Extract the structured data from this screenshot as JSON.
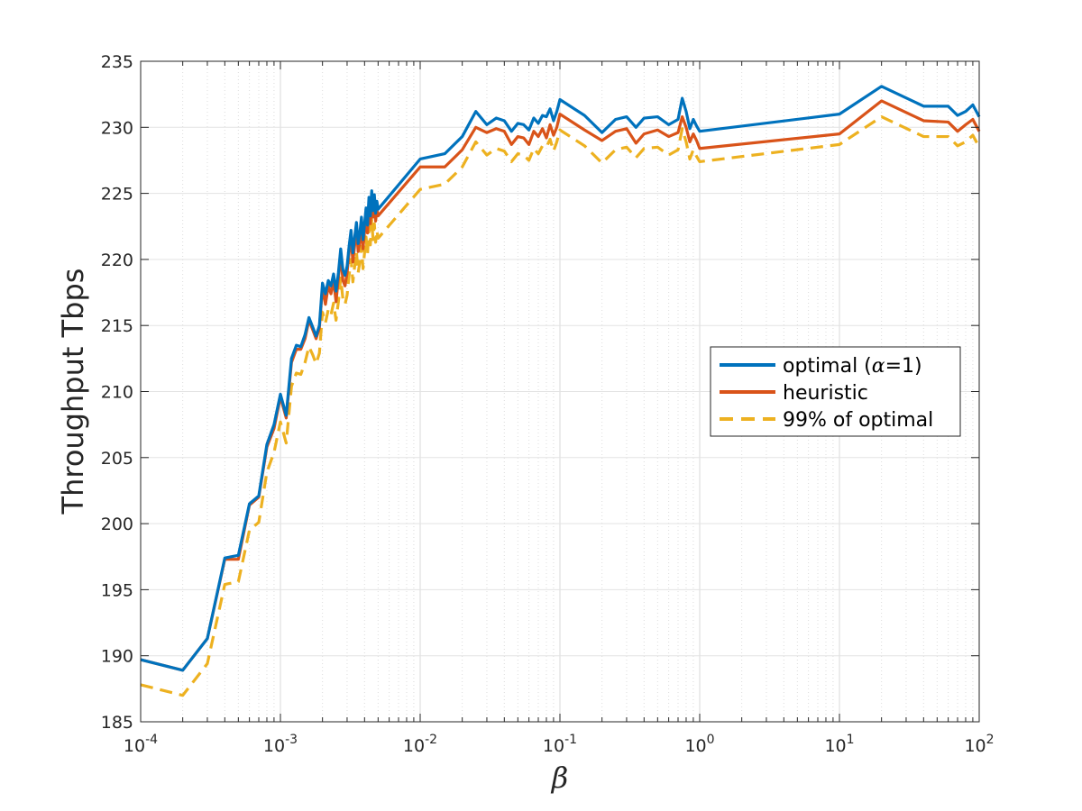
{
  "chart_data": {
    "type": "line",
    "xscale": "log",
    "xlim": [
      0.0001,
      100
    ],
    "ylim": [
      185,
      235
    ],
    "yticks": [
      185,
      190,
      195,
      200,
      205,
      210,
      215,
      220,
      225,
      230,
      235
    ],
    "xticks": [
      {
        "value": 0.0001,
        "base": "10",
        "exp": "-4"
      },
      {
        "value": 0.001,
        "base": "10",
        "exp": "-3"
      },
      {
        "value": 0.01,
        "base": "10",
        "exp": "-2"
      },
      {
        "value": 0.1,
        "base": "10",
        "exp": "-1"
      },
      {
        "value": 1,
        "base": "10",
        "exp": "0"
      },
      {
        "value": 10,
        "base": "10",
        "exp": "1"
      },
      {
        "value": 100,
        "base": "10",
        "exp": "2"
      }
    ],
    "xlabel": "β",
    "ylabel": "Throughput Tbps",
    "grid": true,
    "legend": {
      "position": "center-right",
      "entries": [
        {
          "prefix": "optimal (",
          "symbol": "α",
          "suffix": "=1)"
        },
        {
          "prefix": "heuristic",
          "symbol": "",
          "suffix": ""
        },
        {
          "prefix": "99% of optimal",
          "symbol": "",
          "suffix": ""
        }
      ]
    },
    "series": [
      {
        "key": "optimal",
        "color": "#0072BD",
        "dash": "solid",
        "points": [
          [
            0.0001,
            189.7
          ],
          [
            0.0002,
            188.9
          ],
          [
            0.0003,
            191.3
          ],
          [
            0.0004,
            197.4
          ],
          [
            0.0005,
            197.6
          ],
          [
            0.0006,
            201.5
          ],
          [
            0.0007,
            202.1
          ],
          [
            0.0008,
            206.0
          ],
          [
            0.0009,
            207.5
          ],
          [
            0.001,
            209.8
          ],
          [
            0.0011,
            208.2
          ],
          [
            0.0012,
            212.5
          ],
          [
            0.0013,
            213.5
          ],
          [
            0.0014,
            213.4
          ],
          [
            0.0015,
            214.3
          ],
          [
            0.0016,
            215.6
          ],
          [
            0.0017,
            214.9
          ],
          [
            0.0018,
            214.2
          ],
          [
            0.0019,
            215.0
          ],
          [
            0.002,
            218.2
          ],
          [
            0.0021,
            217.4
          ],
          [
            0.0022,
            218.4
          ],
          [
            0.0023,
            218.0
          ],
          [
            0.0024,
            218.9
          ],
          [
            0.0025,
            217.6
          ],
          [
            0.0026,
            219.0
          ],
          [
            0.0027,
            220.8
          ],
          [
            0.0028,
            219.2
          ],
          [
            0.0029,
            218.8
          ],
          [
            0.003,
            219.5
          ],
          [
            0.0031,
            221.0
          ],
          [
            0.0032,
            222.2
          ],
          [
            0.0033,
            220.5
          ],
          [
            0.0034,
            221.7
          ],
          [
            0.0035,
            222.8
          ],
          [
            0.0036,
            221.2
          ],
          [
            0.0037,
            222.0
          ],
          [
            0.0038,
            223.2
          ],
          [
            0.0039,
            221.5
          ],
          [
            0.004,
            222.7
          ],
          [
            0.0041,
            223.9
          ],
          [
            0.0042,
            222.6
          ],
          [
            0.0043,
            224.7
          ],
          [
            0.0044,
            223.3
          ],
          [
            0.0045,
            225.2
          ],
          [
            0.0046,
            223.7
          ],
          [
            0.0047,
            224.9
          ],
          [
            0.0048,
            223.5
          ],
          [
            0.0049,
            224.4
          ],
          [
            0.005,
            223.8
          ],
          [
            0.01,
            227.6
          ],
          [
            0.015,
            228.0
          ],
          [
            0.02,
            229.3
          ],
          [
            0.025,
            231.2
          ],
          [
            0.03,
            230.2
          ],
          [
            0.035,
            230.7
          ],
          [
            0.04,
            230.5
          ],
          [
            0.045,
            229.7
          ],
          [
            0.05,
            230.3
          ],
          [
            0.055,
            230.2
          ],
          [
            0.06,
            229.8
          ],
          [
            0.065,
            230.7
          ],
          [
            0.07,
            230.3
          ],
          [
            0.075,
            230.9
          ],
          [
            0.08,
            230.8
          ],
          [
            0.085,
            231.4
          ],
          [
            0.09,
            230.5
          ],
          [
            0.095,
            231.2
          ],
          [
            0.1,
            232.1
          ],
          [
            0.15,
            230.9
          ],
          [
            0.2,
            229.6
          ],
          [
            0.25,
            230.6
          ],
          [
            0.3,
            230.8
          ],
          [
            0.35,
            230.0
          ],
          [
            0.4,
            230.7
          ],
          [
            0.5,
            230.8
          ],
          [
            0.6,
            230.2
          ],
          [
            0.7,
            230.6
          ],
          [
            0.75,
            232.2
          ],
          [
            0.8,
            231.2
          ],
          [
            0.85,
            229.9
          ],
          [
            0.9,
            230.6
          ],
          [
            0.95,
            230.1
          ],
          [
            1,
            229.7
          ],
          [
            10,
            231.0
          ],
          [
            20,
            233.1
          ],
          [
            40,
            231.6
          ],
          [
            60,
            231.6
          ],
          [
            70,
            230.9
          ],
          [
            80,
            231.2
          ],
          [
            90,
            231.7
          ],
          [
            100,
            230.8
          ]
        ]
      },
      {
        "key": "heuristic",
        "color": "#D95319",
        "dash": "solid",
        "points": [
          [
            0.0001,
            189.7
          ],
          [
            0.0002,
            188.9
          ],
          [
            0.0003,
            191.3
          ],
          [
            0.0004,
            197.3
          ],
          [
            0.0005,
            197.3
          ],
          [
            0.0006,
            201.4
          ],
          [
            0.0007,
            202.0
          ],
          [
            0.0008,
            205.8
          ],
          [
            0.0009,
            207.2
          ],
          [
            0.001,
            209.6
          ],
          [
            0.0011,
            208.0
          ],
          [
            0.0012,
            212.2
          ],
          [
            0.0013,
            213.2
          ],
          [
            0.0014,
            213.2
          ],
          [
            0.0015,
            214.0
          ],
          [
            0.0016,
            215.4
          ],
          [
            0.0017,
            214.7
          ],
          [
            0.0018,
            214.0
          ],
          [
            0.0019,
            214.8
          ],
          [
            0.002,
            217.9
          ],
          [
            0.0021,
            216.6
          ],
          [
            0.0022,
            218.0
          ],
          [
            0.0023,
            217.4
          ],
          [
            0.0024,
            218.4
          ],
          [
            0.0025,
            216.8
          ],
          [
            0.0026,
            218.6
          ],
          [
            0.0027,
            220.3
          ],
          [
            0.0028,
            218.4
          ],
          [
            0.0029,
            218.0
          ],
          [
            0.003,
            219.0
          ],
          [
            0.0031,
            220.5
          ],
          [
            0.0032,
            221.7
          ],
          [
            0.0033,
            219.8
          ],
          [
            0.0034,
            221.1
          ],
          [
            0.0035,
            222.3
          ],
          [
            0.0036,
            220.6
          ],
          [
            0.0037,
            221.3
          ],
          [
            0.0038,
            222.7
          ],
          [
            0.0039,
            220.8
          ],
          [
            0.004,
            222.1
          ],
          [
            0.0041,
            223.3
          ],
          [
            0.0042,
            222.0
          ],
          [
            0.0043,
            224.2
          ],
          [
            0.0044,
            222.7
          ],
          [
            0.0045,
            224.6
          ],
          [
            0.0046,
            223.2
          ],
          [
            0.0047,
            224.3
          ],
          [
            0.0048,
            222.9
          ],
          [
            0.0049,
            223.8
          ],
          [
            0.005,
            223.3
          ],
          [
            0.01,
            227.0
          ],
          [
            0.015,
            227.0
          ],
          [
            0.02,
            228.3
          ],
          [
            0.025,
            230.0
          ],
          [
            0.03,
            229.6
          ],
          [
            0.035,
            229.9
          ],
          [
            0.04,
            229.7
          ],
          [
            0.045,
            228.7
          ],
          [
            0.05,
            229.3
          ],
          [
            0.055,
            229.2
          ],
          [
            0.06,
            228.7
          ],
          [
            0.065,
            229.7
          ],
          [
            0.07,
            229.3
          ],
          [
            0.075,
            229.9
          ],
          [
            0.08,
            229.2
          ],
          [
            0.085,
            230.2
          ],
          [
            0.09,
            229.4
          ],
          [
            0.095,
            230.0
          ],
          [
            0.1,
            231.0
          ],
          [
            0.15,
            229.8
          ],
          [
            0.2,
            229.0
          ],
          [
            0.25,
            229.7
          ],
          [
            0.3,
            229.9
          ],
          [
            0.35,
            228.8
          ],
          [
            0.4,
            229.5
          ],
          [
            0.5,
            229.8
          ],
          [
            0.6,
            229.3
          ],
          [
            0.7,
            229.6
          ],
          [
            0.75,
            230.8
          ],
          [
            0.8,
            230.0
          ],
          [
            0.85,
            228.9
          ],
          [
            0.9,
            229.5
          ],
          [
            0.95,
            229.0
          ],
          [
            1,
            228.4
          ],
          [
            10,
            229.5
          ],
          [
            20,
            232.0
          ],
          [
            40,
            230.5
          ],
          [
            60,
            230.4
          ],
          [
            70,
            229.7
          ],
          [
            80,
            230.2
          ],
          [
            90,
            230.6
          ],
          [
            100,
            229.7
          ]
        ]
      },
      {
        "key": "ninety_nine_percent",
        "color": "#EDB120",
        "dash": "dashed",
        "points": [
          [
            0.0001,
            187.8
          ],
          [
            0.0002,
            187.0
          ],
          [
            0.0003,
            189.4
          ],
          [
            0.0004,
            195.4
          ],
          [
            0.0005,
            195.6
          ],
          [
            0.0006,
            199.5
          ],
          [
            0.0007,
            200.1
          ],
          [
            0.0008,
            203.9
          ],
          [
            0.0009,
            205.4
          ],
          [
            0.001,
            207.7
          ],
          [
            0.0011,
            206.1
          ],
          [
            0.0012,
            210.4
          ],
          [
            0.0013,
            211.4
          ],
          [
            0.0014,
            211.3
          ],
          [
            0.0015,
            212.2
          ],
          [
            0.0016,
            213.4
          ],
          [
            0.0017,
            212.8
          ],
          [
            0.0018,
            212.1
          ],
          [
            0.0019,
            212.9
          ],
          [
            0.002,
            216.0
          ],
          [
            0.0021,
            215.2
          ],
          [
            0.0022,
            216.2
          ],
          [
            0.0023,
            215.8
          ],
          [
            0.0024,
            216.7
          ],
          [
            0.0025,
            215.4
          ],
          [
            0.0026,
            216.8
          ],
          [
            0.0027,
            218.6
          ],
          [
            0.0028,
            217.0
          ],
          [
            0.0029,
            216.6
          ],
          [
            0.003,
            217.3
          ],
          [
            0.0031,
            218.8
          ],
          [
            0.0032,
            220.0
          ],
          [
            0.0033,
            218.3
          ],
          [
            0.0034,
            219.5
          ],
          [
            0.0035,
            220.6
          ],
          [
            0.0036,
            219.0
          ],
          [
            0.0037,
            219.8
          ],
          [
            0.0038,
            221.0
          ],
          [
            0.0039,
            219.3
          ],
          [
            0.004,
            220.5
          ],
          [
            0.0041,
            221.7
          ],
          [
            0.0042,
            220.4
          ],
          [
            0.0043,
            222.5
          ],
          [
            0.0044,
            221.1
          ],
          [
            0.0045,
            223.0
          ],
          [
            0.0046,
            221.5
          ],
          [
            0.0047,
            222.7
          ],
          [
            0.0048,
            221.3
          ],
          [
            0.0049,
            222.2
          ],
          [
            0.005,
            221.6
          ],
          [
            0.01,
            225.3
          ],
          [
            0.015,
            225.7
          ],
          [
            0.02,
            227.0
          ],
          [
            0.025,
            228.9
          ],
          [
            0.03,
            227.9
          ],
          [
            0.035,
            228.4
          ],
          [
            0.04,
            228.2
          ],
          [
            0.045,
            227.4
          ],
          [
            0.05,
            228.0
          ],
          [
            0.055,
            227.9
          ],
          [
            0.06,
            227.5
          ],
          [
            0.065,
            228.4
          ],
          [
            0.07,
            228.0
          ],
          [
            0.075,
            228.6
          ],
          [
            0.08,
            228.5
          ],
          [
            0.085,
            229.1
          ],
          [
            0.09,
            228.2
          ],
          [
            0.095,
            228.9
          ],
          [
            0.1,
            229.8
          ],
          [
            0.15,
            228.6
          ],
          [
            0.2,
            227.3
          ],
          [
            0.25,
            228.3
          ],
          [
            0.3,
            228.5
          ],
          [
            0.35,
            227.7
          ],
          [
            0.4,
            228.4
          ],
          [
            0.5,
            228.5
          ],
          [
            0.6,
            227.9
          ],
          [
            0.7,
            228.3
          ],
          [
            0.75,
            229.9
          ],
          [
            0.8,
            228.9
          ],
          [
            0.85,
            227.6
          ],
          [
            0.9,
            228.3
          ],
          [
            0.95,
            227.8
          ],
          [
            1,
            227.4
          ],
          [
            10,
            228.7
          ],
          [
            20,
            230.8
          ],
          [
            40,
            229.3
          ],
          [
            60,
            229.3
          ],
          [
            70,
            228.6
          ],
          [
            80,
            228.9
          ],
          [
            90,
            229.4
          ],
          [
            100,
            228.5
          ]
        ]
      }
    ]
  }
}
